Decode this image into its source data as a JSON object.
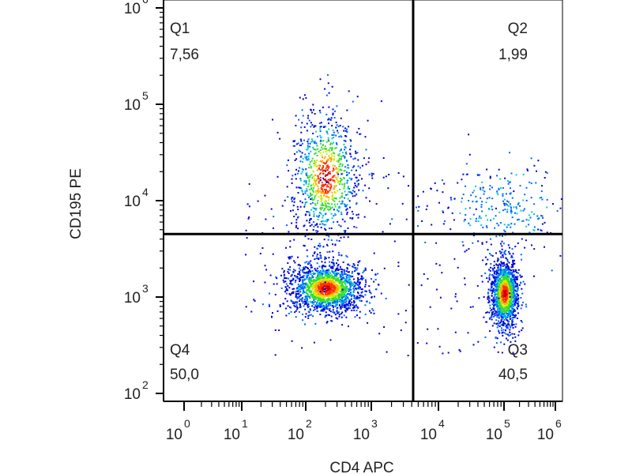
{
  "chart_data": {
    "type": "scatter",
    "plot_kind": "flow cytometry density dot plot with quadrant gates",
    "xlabel": "CD4 APC",
    "ylabel": "CD195 PE",
    "x_scale": "biexponential",
    "y_scale": "log",
    "xlim": [
      0,
      1000000
    ],
    "ylim": [
      100,
      1000000
    ],
    "x_ticks": [
      {
        "base": "10",
        "exp": "0",
        "value": 1
      },
      {
        "base": "10",
        "exp": "1",
        "value": 10
      },
      {
        "base": "10",
        "exp": "2",
        "value": 100
      },
      {
        "base": "10",
        "exp": "3",
        "value": 1000
      },
      {
        "base": "10",
        "exp": "4",
        "value": 10000
      },
      {
        "base": "10",
        "exp": "5",
        "value": 100000
      },
      {
        "base": "10",
        "exp": "6",
        "value": 1000000
      }
    ],
    "y_ticks": [
      {
        "base": "10",
        "exp": "2",
        "value": 100
      },
      {
        "base": "10",
        "exp": "3",
        "value": 1000
      },
      {
        "base": "10",
        "exp": "4",
        "value": 10000
      },
      {
        "base": "10",
        "exp": "5",
        "value": 100000
      },
      {
        "base": "10",
        "exp": "6",
        "value": 1000000
      }
    ],
    "gates": {
      "x": 4200,
      "y": 4500
    },
    "quadrants": [
      {
        "name": "Q1",
        "value": "7,56",
        "position": "top-left"
      },
      {
        "name": "Q2",
        "value": "1,99",
        "position": "top-right"
      },
      {
        "name": "Q3",
        "value": "40,5",
        "position": "bottom-right"
      },
      {
        "name": "Q4",
        "value": "50,0",
        "position": "bottom-left"
      }
    ],
    "populations": [
      {
        "center_x": 200,
        "center_y": 1250,
        "density": "high",
        "note": "CD4- CD195- main cluster"
      },
      {
        "center_x": 200,
        "center_y": 18000,
        "density": "medium",
        "note": "CD4- CD195+ tail"
      },
      {
        "center_x": 100000,
        "center_y": 1100,
        "density": "high",
        "note": "CD4+ CD195- cluster"
      },
      {
        "center_x": 90000,
        "center_y": 9000,
        "density": "low",
        "note": "CD4+ CD195+ tail"
      }
    ],
    "density_colors": [
      "#0000d8",
      "#0066ff",
      "#00cccc",
      "#33dd33",
      "#ccee00",
      "#ffaa00",
      "#ff3300",
      "#cc0000"
    ],
    "grid": false
  }
}
